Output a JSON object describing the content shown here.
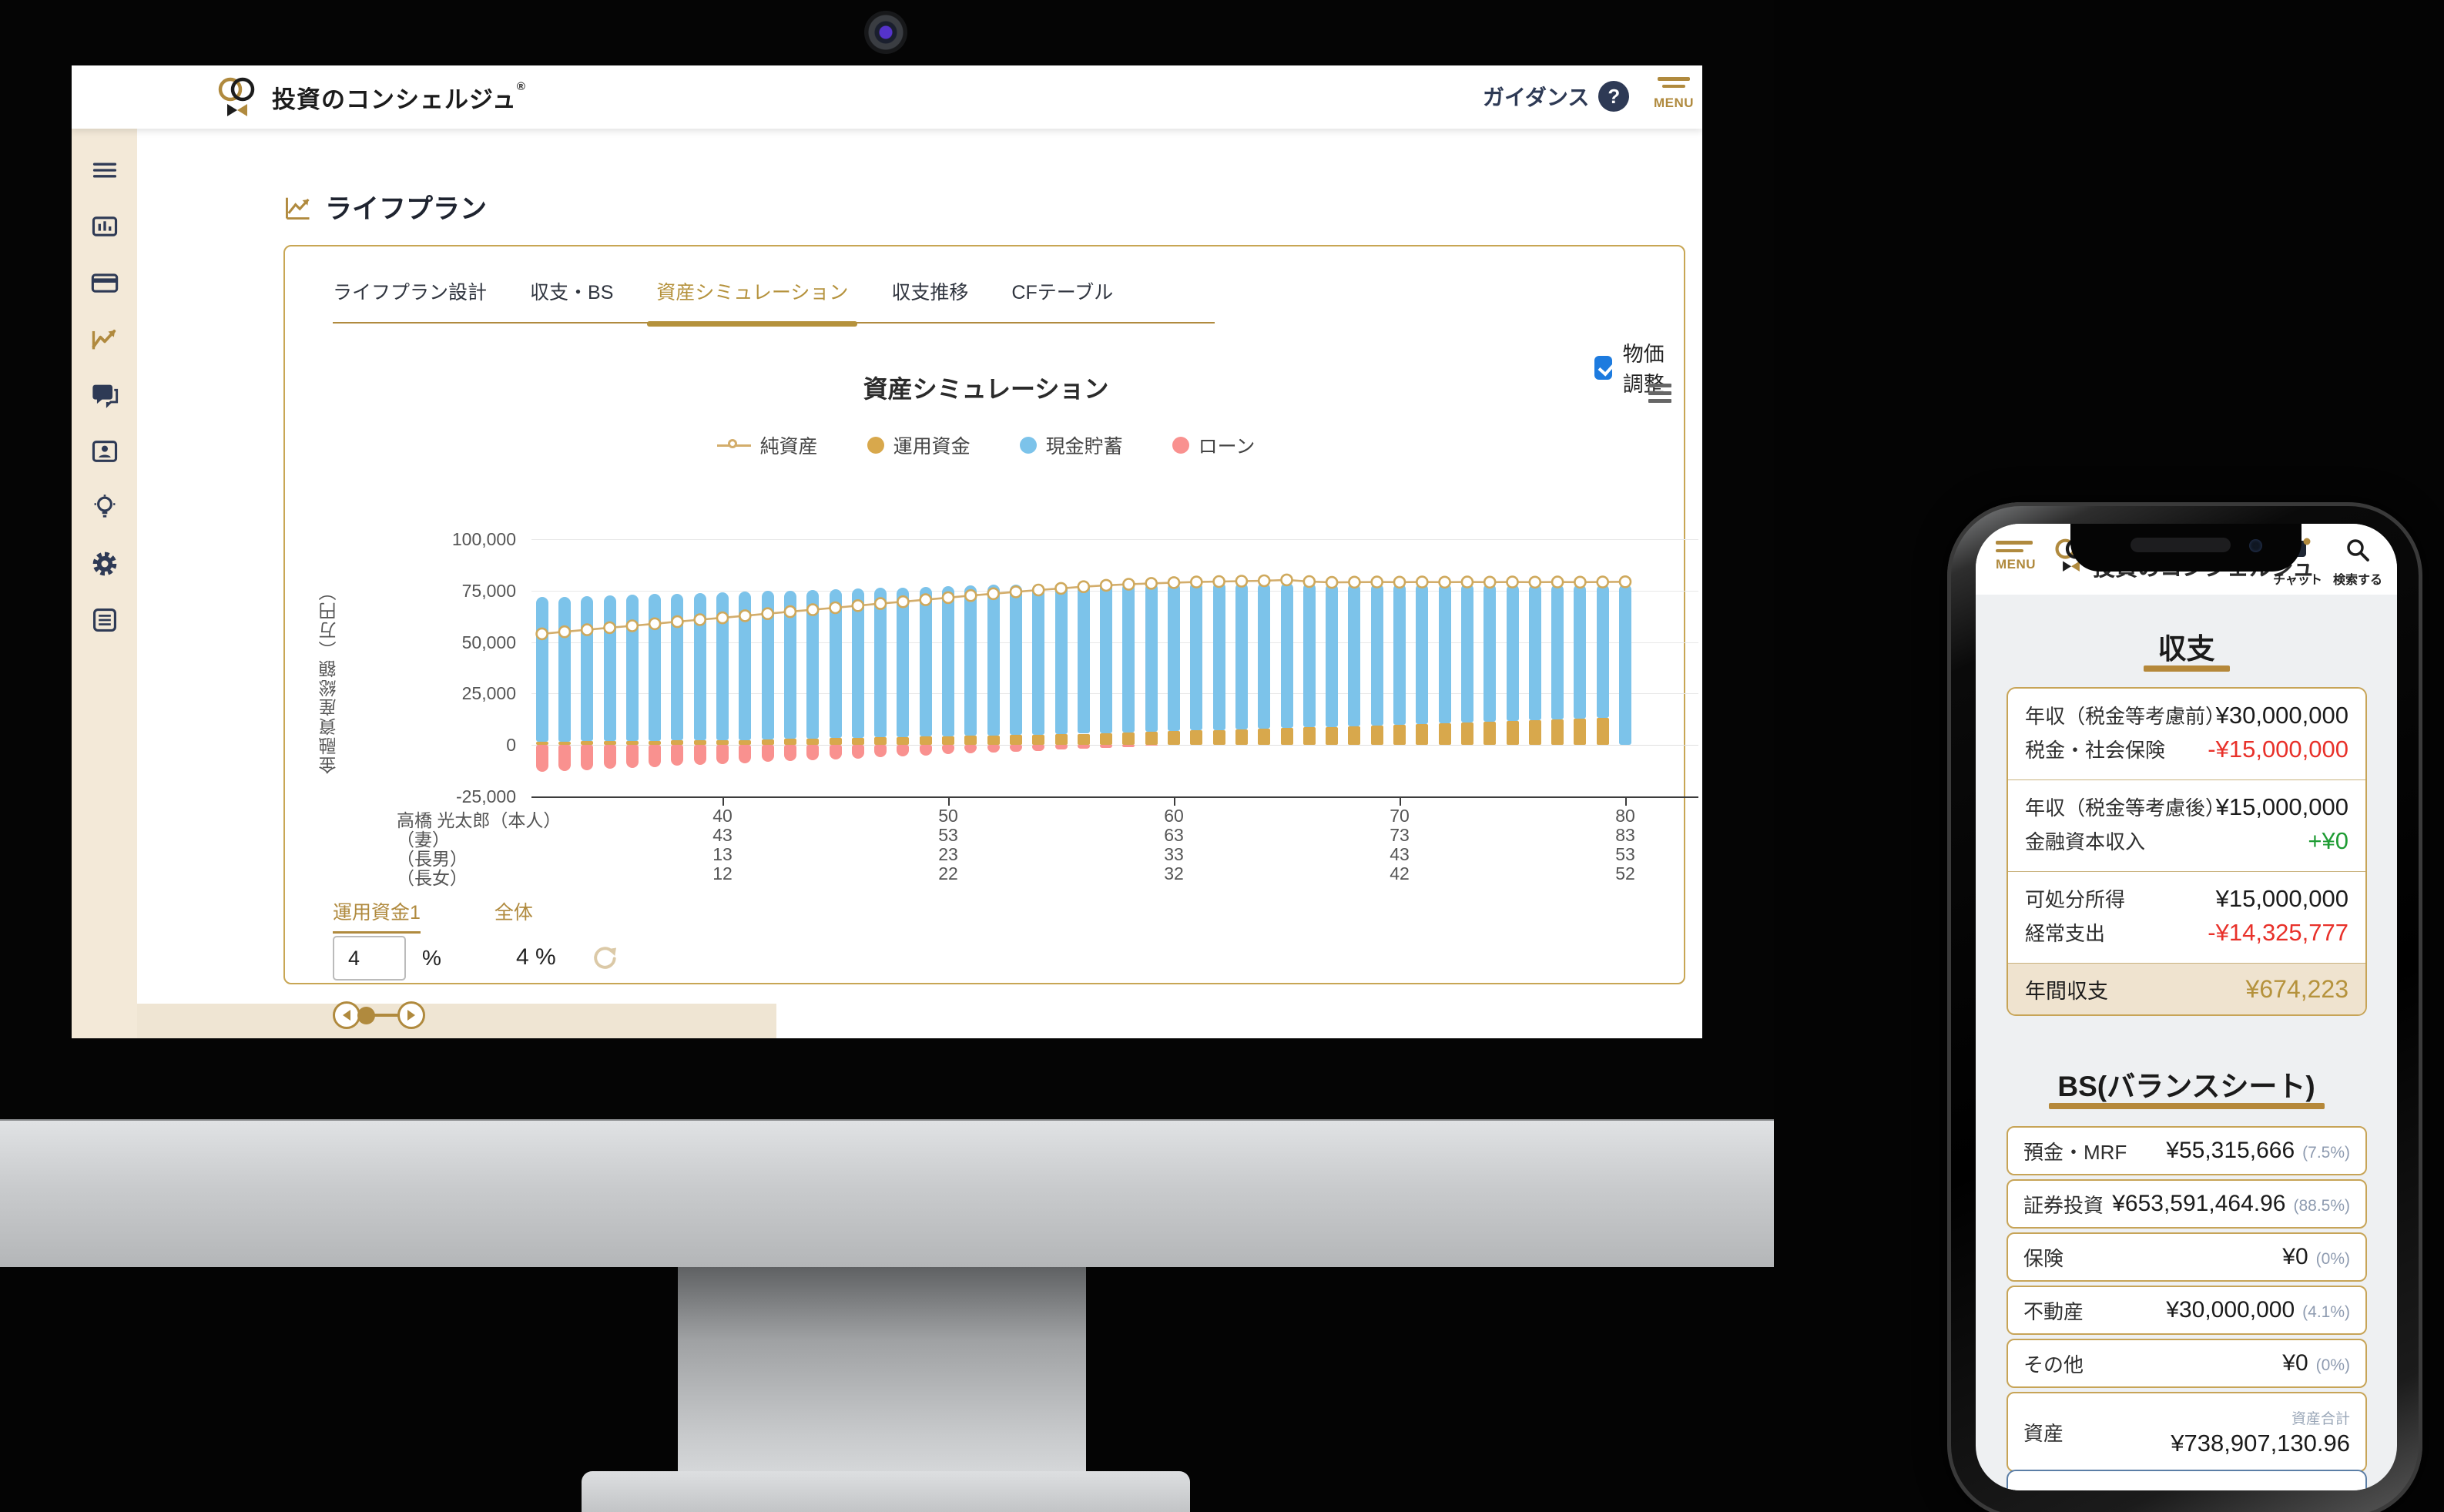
{
  "colors": {
    "gold": "#b08a3e",
    "navy": "#2e3a55",
    "beige": "#f3e9d8",
    "blue_bar": "#7cc3ea",
    "gold_bar": "#d8a84c",
    "pink_bar": "#f9918f",
    "net_line": "#d3ad6b",
    "check_blue": "#1d7bdf",
    "red": "#e8312a",
    "green": "#1f9c34"
  },
  "desktop": {
    "header": {
      "brand": "投資のコンシェルジュ",
      "brand_mark": "®",
      "guidance": "ガイダンス",
      "question": "?",
      "menu": "MENU"
    },
    "sidebar": {
      "items": [
        {
          "id": "menu",
          "active": false
        },
        {
          "id": "dashboard",
          "active": false
        },
        {
          "id": "card",
          "active": false
        },
        {
          "id": "trend",
          "active": true
        },
        {
          "id": "chat",
          "active": false
        },
        {
          "id": "contact",
          "active": false
        },
        {
          "id": "idea",
          "active": false
        },
        {
          "id": "settings",
          "active": false
        },
        {
          "id": "report",
          "active": false
        }
      ]
    },
    "page_title": "ライフプラン",
    "tabs": {
      "active_index": 2,
      "items": [
        "ライフプラン設計",
        "収支・BS",
        "資産シミュレーション",
        "収支推移",
        "CFテーブル"
      ]
    },
    "price_adjust": "物価調整",
    "x_rows": [
      {
        "label": "高橋 光太郎（本人）",
        "values": [
          "40",
          "50",
          "60",
          "70",
          "80"
        ]
      },
      {
        "label": "（妻）",
        "values": [
          "43",
          "53",
          "63",
          "73",
          "83"
        ]
      },
      {
        "label": "（長男）",
        "values": [
          "13",
          "23",
          "33",
          "43",
          "53"
        ]
      },
      {
        "label": "（長女）",
        "values": [
          "12",
          "22",
          "32",
          "42",
          "52"
        ]
      }
    ],
    "controls": {
      "fund_tab": "運用資金1",
      "overall_tab": "全体",
      "rate_value": "4",
      "unit": "%",
      "overall_value": "4 %"
    }
  },
  "chart_data": {
    "type": "bar",
    "stacked": true,
    "title": "資産シミュレーション",
    "ylabel": "金融資産総額（万円）",
    "ylim": [
      -25000,
      100000
    ],
    "y_ticks": [
      100000,
      75000,
      50000,
      25000,
      0,
      -25000
    ],
    "x_ticks": [
      40,
      50,
      60,
      70,
      80
    ],
    "ages": [
      32,
      33,
      34,
      35,
      36,
      37,
      38,
      39,
      40,
      41,
      42,
      43,
      44,
      45,
      46,
      47,
      48,
      49,
      50,
      51,
      52,
      53,
      54,
      55,
      56,
      57,
      58,
      59,
      60,
      61,
      62,
      63,
      64,
      65,
      66,
      67,
      68,
      69,
      70,
      71,
      72,
      73,
      74,
      75,
      76,
      77,
      78,
      79,
      80
    ],
    "legend": [
      {
        "label": "純資産",
        "type": "line",
        "color": "#d3ad6b"
      },
      {
        "label": "運用資金",
        "type": "dot",
        "color": "#d8a84c"
      },
      {
        "label": "現金貯蓄",
        "type": "dot",
        "color": "#7cc3ea"
      },
      {
        "label": "ローン",
        "type": "dot",
        "color": "#f9918f"
      }
    ],
    "series": [
      {
        "name": "運用資金",
        "type": "bar",
        "color": "#d8a84c",
        "values": [
          1600,
          1700,
          1800,
          1900,
          2000,
          2100,
          2200,
          2300,
          2400,
          2500,
          2700,
          2900,
          3100,
          3300,
          3500,
          3700,
          3900,
          4100,
          4300,
          4500,
          4700,
          4900,
          5100,
          5300,
          5500,
          5800,
          6100,
          6400,
          6700,
          7000,
          7300,
          7600,
          7900,
          8200,
          8500,
          8800,
          9100,
          9400,
          9700,
          10000,
          10400,
          10800,
          11200,
          11600,
          12000,
          12400,
          12800,
          13200,
          0
        ]
      },
      {
        "name": "現金貯蓄",
        "type": "bar",
        "color": "#7cc3ea",
        "values": [
          70200,
          70400,
          70600,
          70800,
          71000,
          71200,
          71400,
          71600,
          71800,
          72000,
          72100,
          72200,
          72300,
          72400,
          72500,
          72600,
          72700,
          72800,
          72900,
          73000,
          73100,
          73200,
          73200,
          73200,
          73200,
          73100,
          72900,
          72700,
          72500,
          72300,
          72000,
          71600,
          71200,
          70800,
          70400,
          70000,
          69700,
          69300,
          69000,
          68600,
          68200,
          67700,
          67300,
          66800,
          66400,
          65900,
          65500,
          65000,
          78200
        ]
      },
      {
        "name": "ローン",
        "type": "bar",
        "color": "#f9918f",
        "values": [
          -13000,
          -12500,
          -12100,
          -11600,
          -11100,
          -10700,
          -10200,
          -9750,
          -9300,
          -8800,
          -8350,
          -7900,
          -7400,
          -7000,
          -6500,
          -6000,
          -5600,
          -5100,
          -4600,
          -4200,
          -3700,
          -3250,
          -2800,
          -2300,
          -1850,
          -1400,
          -900,
          -450,
          0,
          0,
          0,
          0,
          0,
          0,
          0,
          0,
          0,
          0,
          0,
          0,
          0,
          0,
          0,
          0,
          0,
          0,
          0,
          0,
          0
        ]
      },
      {
        "name": "純資産",
        "type": "line",
        "color": "#d3ad6b",
        "values": [
          54000,
          55000,
          56000,
          57000,
          57900,
          58900,
          59900,
          60900,
          61800,
          62800,
          63800,
          64800,
          65700,
          66700,
          67700,
          68700,
          69600,
          70600,
          71600,
          72600,
          73500,
          74400,
          75300,
          76100,
          76900,
          77600,
          78100,
          78500,
          78900,
          79200,
          79400,
          79600,
          79800,
          80200,
          79400,
          79000,
          79100,
          79200,
          79100,
          79200,
          79100,
          79200,
          79100,
          79200,
          79100,
          79200,
          79100,
          79200,
          79300
        ]
      }
    ]
  },
  "phone": {
    "header": {
      "menu": "MENU",
      "brand": "投資のコンシェルジュ",
      "chat": "チャット",
      "search": "検索する"
    },
    "income": {
      "title": "収支",
      "groups": [
        [
          {
            "label": "年収（税金等考慮前）",
            "value": "¥30,000,000",
            "tone": "normal"
          },
          {
            "label": "税金・社会保険",
            "value": "-¥15,000,000",
            "tone": "negative"
          }
        ],
        [
          {
            "label": "年収（税金等考慮後）",
            "value": "¥15,000,000",
            "tone": "normal"
          },
          {
            "label": "金融資本収入",
            "value": "+¥0",
            "tone": "positive"
          }
        ],
        [
          {
            "label": "可処分所得",
            "value": "¥15,000,000",
            "tone": "normal"
          },
          {
            "label": "経常支出",
            "value": "-¥14,325,777",
            "tone": "negative"
          }
        ]
      ],
      "total": {
        "label": "年間収支",
        "value": "¥674,223"
      }
    },
    "bs": {
      "title": "BS(バランスシート)",
      "rows": [
        {
          "label": "預金・MRF",
          "value": "¥55,315,666",
          "pct": "(7.5%)"
        },
        {
          "label": "証券投資",
          "value": "¥653,591,464.96",
          "pct": "(88.5%)"
        },
        {
          "label": "保険",
          "value": "¥0",
          "pct": "(0%)"
        },
        {
          "label": "不動産",
          "value": "¥30,000,000",
          "pct": "(4.1%)"
        },
        {
          "label": "その他",
          "value": "¥0",
          "pct": "(0%)"
        },
        {
          "label": "資産",
          "sub": "資産合計",
          "value": "¥738,907,130.96",
          "pct": ""
        }
      ]
    }
  }
}
